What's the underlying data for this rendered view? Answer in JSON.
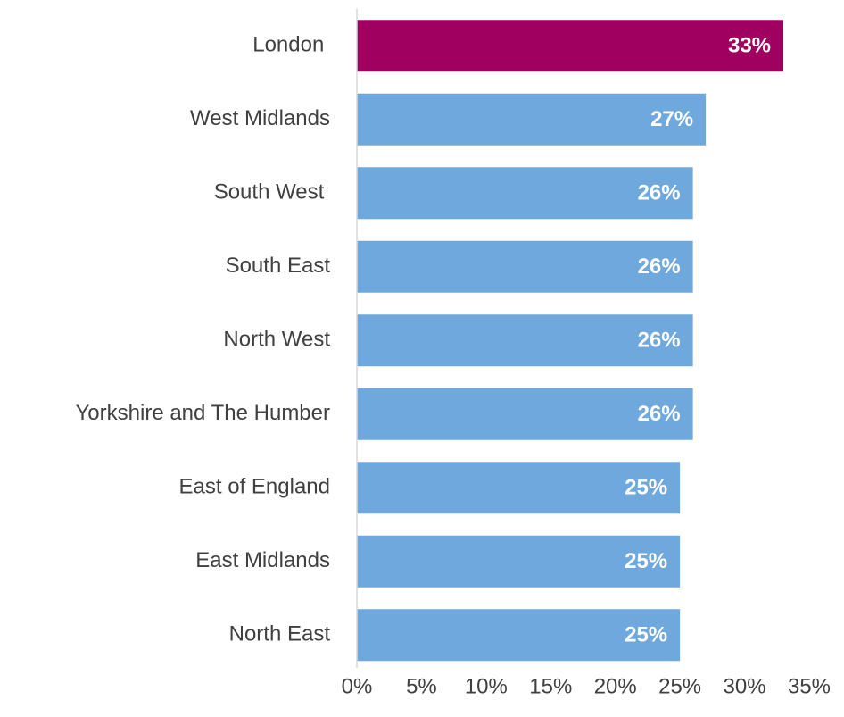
{
  "chart_data": {
    "type": "barh",
    "categories": [
      "London ",
      "West Midlands",
      "South West ",
      "South East",
      "North West",
      "Yorkshire and The Humber",
      "East of England",
      "East Midlands",
      "North East"
    ],
    "values": [
      33,
      27,
      26,
      26,
      26,
      26,
      25,
      25,
      25
    ],
    "value_labels": [
      "33%",
      "27%",
      "26%",
      "26%",
      "26%",
      "26%",
      "25%",
      "25%",
      "25%"
    ],
    "colors": [
      "#a0005f",
      "#6fa8dc",
      "#6fa8dc",
      "#6fa8dc",
      "#6fa8dc",
      "#6fa8dc",
      "#6fa8dc",
      "#6fa8dc",
      "#6fa8dc"
    ],
    "xlim": [
      0,
      35
    ],
    "xticks": [
      {
        "value": 0,
        "label": "0%"
      },
      {
        "value": 5,
        "label": "5%"
      },
      {
        "value": 10,
        "label": "10%"
      },
      {
        "value": 15,
        "label": "15%"
      },
      {
        "value": 20,
        "label": "20%"
      },
      {
        "value": 25,
        "label": "25%"
      },
      {
        "value": 30,
        "label": "30%"
      },
      {
        "value": 35,
        "label": "35%"
      }
    ],
    "grid": false
  }
}
